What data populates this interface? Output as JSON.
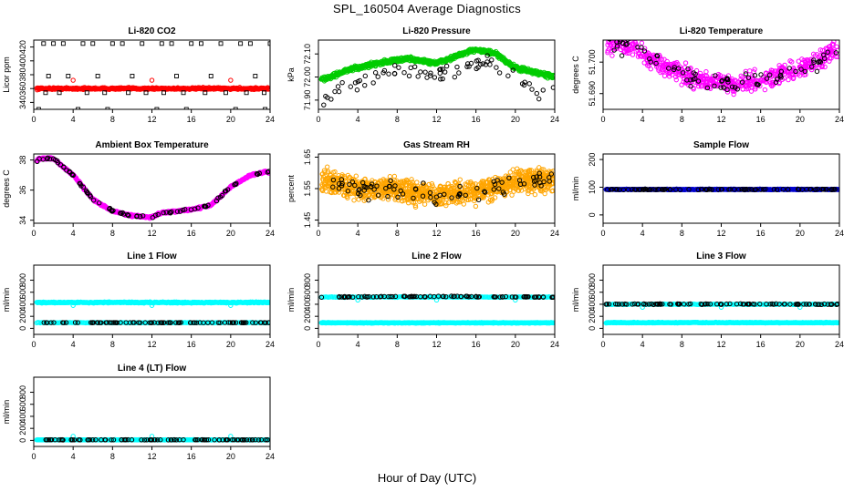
{
  "title": "SPL_160504  Average Diagnostics",
  "xlabel": "Hour of Day (UTC)",
  "colors": {
    "black": "#000000",
    "red": "#ff0000",
    "green": "#00cc00",
    "magenta": "#ff00ff",
    "orange": "#ffa500",
    "blue": "#0000cd",
    "cyan": "#00ffff"
  },
  "chart_data": [
    {
      "type": "scatter",
      "title": "Li-820 CO2",
      "ylabel": "Licor ppm",
      "xlim": [
        0,
        24
      ],
      "ylim": [
        330,
        430
      ],
      "xticks": [
        0,
        4,
        8,
        12,
        16,
        20,
        24
      ],
      "yticks": [
        340,
        360,
        380,
        400,
        420
      ],
      "series": [
        {
          "color": "#ff0000",
          "style": "band",
          "base": 360,
          "amp": 1.2,
          "noise": 1.2,
          "density": 500,
          "shape": "circle"
        },
        {
          "color": "#ff0000",
          "style": "points",
          "shape": "circle",
          "x": [
            4,
            12,
            20
          ],
          "y": [
            372,
            372,
            372
          ]
        },
        {
          "color": "#000000",
          "style": "points",
          "shape": "square",
          "x": [
            1,
            2,
            3,
            5,
            6,
            8,
            9,
            11,
            13,
            14,
            16,
            17,
            19,
            21,
            22,
            24,
            0.5,
            4.5,
            7.5,
            12.5,
            15.5,
            20.5,
            23.5,
            1.5,
            3.5,
            6.5,
            10,
            14.5,
            18,
            22.5
          ],
          "y": [
            425,
            425,
            425,
            425,
            425,
            425,
            425,
            425,
            425,
            425,
            425,
            425,
            425,
            425,
            425,
            425,
            330,
            330,
            330,
            330,
            330,
            330,
            330,
            378,
            378,
            378,
            378,
            378,
            378,
            378
          ]
        },
        {
          "color": "#000000",
          "style": "points",
          "shape": "square",
          "x": [
            1.2,
            2.6,
            5.4,
            7.2,
            9.6,
            11.4,
            13.2,
            15.2,
            17.4,
            19.5,
            21.6,
            23.4
          ],
          "y": [
            354,
            354,
            354,
            354,
            354,
            354,
            354,
            354,
            354,
            354,
            354,
            354
          ]
        }
      ]
    },
    {
      "type": "scatter",
      "title": "Li-820 Pressure",
      "ylabel": "kPa",
      "xlim": [
        0,
        24
      ],
      "ylim": [
        71.86,
        72.16
      ],
      "xticks": [
        0,
        4,
        8,
        12,
        16,
        20,
        24
      ],
      "yticks": [
        71.9,
        72.0,
        72.1
      ],
      "ytick_labels": [
        "71.90",
        "72.00",
        "72.10"
      ],
      "series": [
        {
          "color": "#00cc00",
          "style": "band",
          "trend": [
            [
              0.5,
              71.99
            ],
            [
              3,
              72.03
            ],
            [
              6,
              72.06
            ],
            [
              9,
              72.08
            ],
            [
              12,
              72.06
            ],
            [
              16,
              72.12
            ],
            [
              18,
              72.1
            ],
            [
              20,
              72.04
            ],
            [
              24,
              72.0
            ]
          ],
          "noise": 0.008,
          "density": 700,
          "shape": "circle"
        },
        {
          "color": "#000000",
          "style": "scatter",
          "trend": [
            [
              0.5,
              71.91
            ],
            [
              3,
              71.96
            ],
            [
              6,
              72.0
            ],
            [
              9,
              72.03
            ],
            [
              12,
              72.0
            ],
            [
              16,
              72.06
            ],
            [
              18,
              72.05
            ],
            [
              20,
              71.98
            ],
            [
              24,
              71.93
            ]
          ],
          "noise": 0.03,
          "count": 75,
          "shape": "circle"
        }
      ]
    },
    {
      "type": "scatter",
      "title": "Li-820 Temperature",
      "ylabel": "degrees C",
      "xlim": [
        0,
        24
      ],
      "ylim": [
        51.685,
        51.707
      ],
      "xticks": [
        0,
        4,
        8,
        12,
        16,
        20,
        24
      ],
      "yticks": [
        51.69,
        51.7
      ],
      "ytick_labels": [
        "51.690",
        "51.700"
      ],
      "series": [
        {
          "color": "#ff00ff",
          "style": "scatter",
          "trend": [
            [
              0,
              51.706
            ],
            [
              3,
              51.705
            ],
            [
              6,
              51.699
            ],
            [
              10,
              51.694
            ],
            [
              14,
              51.693
            ],
            [
              17,
              51.695
            ],
            [
              20,
              51.698
            ],
            [
              24,
              51.704
            ]
          ],
          "noise": 0.0025,
          "count": 600,
          "shape": "circle"
        },
        {
          "color": "#000000",
          "style": "scatter",
          "trend": [
            [
              0,
              51.706
            ],
            [
              3,
              51.705
            ],
            [
              6,
              51.699
            ],
            [
              10,
              51.694
            ],
            [
              14,
              51.693
            ],
            [
              17,
              51.695
            ],
            [
              20,
              51.698
            ],
            [
              24,
              51.704
            ]
          ],
          "noise": 0.0025,
          "count": 80,
          "shape": "circle"
        }
      ]
    },
    {
      "type": "scatter",
      "title": "Ambient Box Temperature",
      "ylabel": "degrees C",
      "xlim": [
        0,
        24
      ],
      "ylim": [
        33.8,
        38.4
      ],
      "xticks": [
        0,
        4,
        8,
        12,
        16,
        20,
        24
      ],
      "yticks": [
        34,
        36,
        38
      ],
      "series": [
        {
          "color": "#ff00ff",
          "style": "band",
          "trend": [
            [
              0,
              37.7
            ],
            [
              0.5,
              38.1
            ],
            [
              2,
              38.1
            ],
            [
              4,
              37.0
            ],
            [
              6,
              35.4
            ],
            [
              8,
              34.6
            ],
            [
              10,
              34.3
            ],
            [
              12,
              34.2
            ],
            [
              13,
              34.5
            ],
            [
              16,
              34.7
            ],
            [
              18,
              35.0
            ],
            [
              20,
              36.2
            ],
            [
              22,
              37.0
            ],
            [
              23.5,
              37.2
            ]
          ],
          "noise": 0.06,
          "density": 500,
          "shape": "circle"
        },
        {
          "color": "#000000",
          "style": "scatter",
          "trend": [
            [
              0,
              37.7
            ],
            [
              0.5,
              38.1
            ],
            [
              2,
              38.1
            ],
            [
              4,
              37.0
            ],
            [
              6,
              35.4
            ],
            [
              8,
              34.6
            ],
            [
              10,
              34.3
            ],
            [
              12,
              34.2
            ],
            [
              13,
              34.5
            ],
            [
              16,
              34.7
            ],
            [
              18,
              35.0
            ],
            [
              20,
              36.2
            ],
            [
              22,
              37.0
            ],
            [
              23.5,
              37.2
            ]
          ],
          "noise": 0.06,
          "count": 85,
          "shape": "circle"
        }
      ]
    },
    {
      "type": "scatter",
      "title": "Gas Stream RH",
      "ylabel": "percent",
      "xlim": [
        0,
        24
      ],
      "ylim": [
        1.44,
        1.66
      ],
      "xticks": [
        0,
        4,
        8,
        12,
        16,
        20,
        24
      ],
      "yticks": [
        1.45,
        1.55,
        1.65
      ],
      "series": [
        {
          "color": "#ffa500",
          "style": "scatter",
          "trend": [
            [
              0,
              1.58
            ],
            [
              4,
              1.55
            ],
            [
              8,
              1.55
            ],
            [
              12,
              1.53
            ],
            [
              16,
              1.54
            ],
            [
              20,
              1.57
            ],
            [
              24,
              1.58
            ]
          ],
          "noise": 0.03,
          "count": 1100,
          "shape": "circle"
        },
        {
          "color": "#000000",
          "style": "scatter",
          "trend": [
            [
              0,
              1.58
            ],
            [
              4,
              1.55
            ],
            [
              8,
              1.55
            ],
            [
              12,
              1.53
            ],
            [
              16,
              1.54
            ],
            [
              20,
              1.57
            ],
            [
              24,
              1.58
            ]
          ],
          "noise": 0.025,
          "count": 85,
          "shape": "circle"
        }
      ]
    },
    {
      "type": "scatter",
      "title": "Sample Flow",
      "ylabel": "ml/min",
      "xlim": [
        0,
        24
      ],
      "ylim": [
        -30,
        220
      ],
      "xticks": [
        0,
        4,
        8,
        12,
        16,
        20,
        24
      ],
      "yticks": [
        0,
        100,
        200
      ],
      "series": [
        {
          "color": "#0000cd",
          "style": "band",
          "base": 92,
          "amp": 0,
          "noise": 1.2,
          "density": 500,
          "shape": "circle"
        },
        {
          "color": "#000000",
          "style": "scatter",
          "trend": [
            [
              0,
              92
            ],
            [
              24,
              92
            ]
          ],
          "noise": 1.2,
          "count": 90,
          "shape": "circle"
        }
      ]
    },
    {
      "type": "scatter",
      "title": "Line 1 Flow",
      "ylabel": "ml/min",
      "xlim": [
        0,
        24
      ],
      "ylim": [
        -100,
        1050
      ],
      "xticks": [
        0,
        4,
        8,
        12,
        16,
        20,
        24
      ],
      "yticks": [
        0,
        200,
        400,
        600,
        800
      ],
      "series": [
        {
          "color": "#00ffff",
          "style": "band",
          "base": 430,
          "amp": 0,
          "noise": 8,
          "density": 450,
          "shape": "circle"
        },
        {
          "color": "#00ffff",
          "style": "points",
          "shape": "circle",
          "x": [
            4,
            12,
            20
          ],
          "y": [
            380,
            380,
            380
          ]
        },
        {
          "color": "#00ffff",
          "style": "band",
          "base": 95,
          "amp": 0,
          "noise": 4,
          "density": 200,
          "shape": "circle"
        },
        {
          "color": "#000000",
          "style": "scatter",
          "trend": [
            [
              0,
              95
            ],
            [
              24,
              95
            ]
          ],
          "noise": 2,
          "count": 90,
          "shape": "circle"
        }
      ]
    },
    {
      "type": "scatter",
      "title": "Line 2 Flow",
      "ylabel": "ml/min",
      "xlim": [
        0,
        24
      ],
      "ylim": [
        -100,
        1050
      ],
      "xticks": [
        0,
        4,
        8,
        12,
        16,
        20,
        24
      ],
      "yticks": [
        0,
        200,
        400,
        600,
        800
      ],
      "series": [
        {
          "color": "#00ffff",
          "style": "band",
          "base": 92,
          "amp": 0,
          "noise": 5,
          "density": 450,
          "shape": "circle"
        },
        {
          "color": "#00ffff",
          "style": "points",
          "shape": "circle",
          "x": [
            4,
            12,
            20
          ],
          "y": [
            470,
            470,
            470
          ]
        },
        {
          "color": "#00ffff",
          "style": "band",
          "base": 520,
          "amp": 0,
          "noise": 5,
          "density": 200,
          "shape": "circle"
        },
        {
          "color": "#000000",
          "style": "scatter",
          "trend": [
            [
              0,
              520
            ],
            [
              10,
              530
            ],
            [
              24,
              520
            ]
          ],
          "noise": 6,
          "count": 90,
          "shape": "circle"
        }
      ]
    },
    {
      "type": "scatter",
      "title": "Line 3 Flow",
      "ylabel": "ml/min",
      "xlim": [
        0,
        24
      ],
      "ylim": [
        -100,
        1050
      ],
      "xticks": [
        0,
        4,
        8,
        12,
        16,
        20,
        24
      ],
      "yticks": [
        0,
        200,
        400,
        600,
        800
      ],
      "series": [
        {
          "color": "#00ffff",
          "style": "band",
          "base": 95,
          "amp": 0,
          "noise": 5,
          "density": 450,
          "shape": "circle"
        },
        {
          "color": "#00ffff",
          "style": "points",
          "shape": "circle",
          "x": [
            4,
            12,
            20
          ],
          "y": [
            350,
            350,
            350
          ]
        },
        {
          "color": "#00ffff",
          "style": "band",
          "base": 400,
          "amp": 0,
          "noise": 5,
          "density": 200,
          "shape": "circle"
        },
        {
          "color": "#000000",
          "style": "scatter",
          "trend": [
            [
              0,
              400
            ],
            [
              12,
              405
            ],
            [
              24,
              400
            ]
          ],
          "noise": 6,
          "count": 90,
          "shape": "circle"
        }
      ]
    },
    {
      "type": "scatter",
      "title": "Line 4 (LT) Flow",
      "ylabel": "ml/min",
      "xlim": [
        0,
        24
      ],
      "ylim": [
        -100,
        1050
      ],
      "xticks": [
        0,
        4,
        8,
        12,
        16,
        20,
        24
      ],
      "yticks": [
        0,
        200,
        400,
        600,
        800
      ],
      "series": [
        {
          "color": "#00ffff",
          "style": "band",
          "base": 10,
          "amp": 0,
          "noise": 3,
          "density": 400,
          "shape": "circle"
        },
        {
          "color": "#00ffff",
          "style": "points",
          "shape": "circle",
          "x": [
            4,
            12,
            20
          ],
          "y": [
            70,
            70,
            70
          ]
        },
        {
          "color": "#000000",
          "style": "scatter",
          "trend": [
            [
              0,
              10
            ],
            [
              24,
              10
            ]
          ],
          "noise": 2,
          "count": 90,
          "shape": "circle"
        }
      ]
    }
  ]
}
